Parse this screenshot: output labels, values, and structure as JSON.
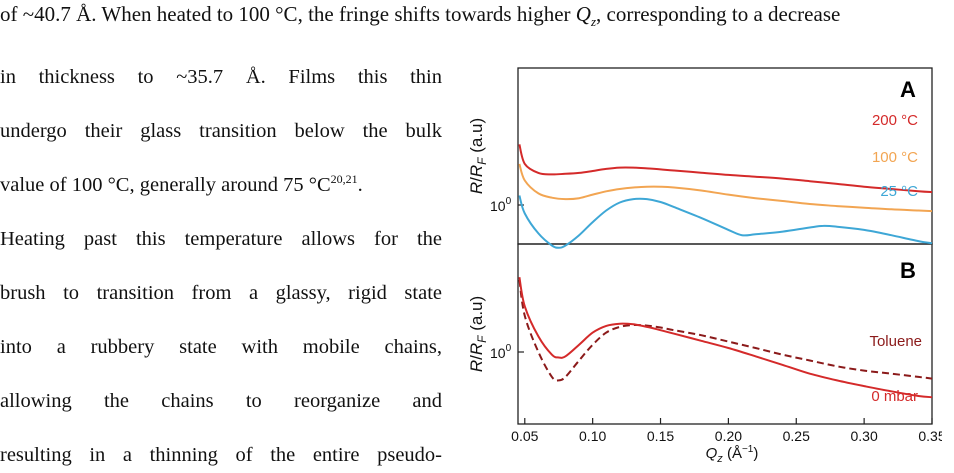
{
  "text": {
    "top_line_pre": "of ~40.7 Å. When heated to 100 °C, the fringe shifts towards higher ",
    "top_line_sym": "Q",
    "top_line_sub": "z",
    "top_line_post": ", corresponding to a decrease",
    "lines": [
      "in thickness to ~35.7 Å. Films this thin",
      "undergo their glass transition below the bulk",
      "value of 100 °C, generally around 75 °C",
      "Heating past this temperature allows for the",
      "brush to transition from a glassy, rigid state",
      "into a rubbery state with mobile chains,",
      "allowing the chains to reorganize and",
      "resulting in a thinning of the entire pseudo-"
    ],
    "citation": "20,21",
    "citation_after": "."
  },
  "figure": {
    "panel_a": {
      "letter": "A",
      "ylabel": "R/R_F (a.u)",
      "ytick": "10",
      "ytick_exp": "0",
      "labels": [
        "200 °C",
        "100 °C",
        "25 °C"
      ]
    },
    "panel_b": {
      "letter": "B",
      "ylabel": "R/R_F (a.u)",
      "ytick": "10",
      "ytick_exp": "0",
      "labels": [
        "Toluene",
        "0 mbar"
      ]
    },
    "xlabel": "Q_z (Å^-1)",
    "xticks": [
      "0.05",
      "0.10",
      "0.15",
      "0.20",
      "0.25",
      "0.30",
      "0.35"
    ],
    "colors": {
      "t200": "#d42a2a",
      "t100": "#f2a552",
      "t25": "#3ea7d6",
      "toluene": "#8b1a1a",
      "mbar0": "#d42a2a",
      "axis": "#222222"
    }
  },
  "chart_data": [
    {
      "type": "line",
      "panel": "A",
      "xlabel": "Qz (Å⁻¹)",
      "ylabel": "R/RF (a.u)",
      "xlim": [
        0.045,
        0.35
      ],
      "yscale": "log",
      "series": [
        {
          "name": "200 °C",
          "x": [
            0.046,
            0.05,
            0.06,
            0.07,
            0.08,
            0.09,
            0.1,
            0.11,
            0.12,
            0.13,
            0.14,
            0.15,
            0.16,
            0.18,
            0.2,
            0.22,
            0.24,
            0.26,
            0.28,
            0.3,
            0.32,
            0.34,
            0.35
          ],
          "y": [
            3.2,
            2.2,
            1.85,
            1.8,
            1.82,
            1.85,
            1.92,
            2.0,
            2.05,
            2.05,
            2.02,
            1.98,
            1.94,
            1.86,
            1.78,
            1.72,
            1.66,
            1.58,
            1.5,
            1.42,
            1.36,
            1.3,
            1.28
          ]
        },
        {
          "name": "100 °C",
          "x": [
            0.046,
            0.05,
            0.06,
            0.07,
            0.08,
            0.09,
            0.1,
            0.11,
            0.12,
            0.13,
            0.14,
            0.15,
            0.16,
            0.18,
            0.2,
            0.22,
            0.24,
            0.26,
            0.28,
            0.3,
            0.32,
            0.34,
            0.35
          ],
          "y": [
            2.2,
            1.6,
            1.25,
            1.15,
            1.12,
            1.14,
            1.22,
            1.3,
            1.36,
            1.4,
            1.42,
            1.42,
            1.4,
            1.32,
            1.22,
            1.14,
            1.08,
            1.02,
            0.98,
            0.95,
            0.92,
            0.9,
            0.89
          ]
        },
        {
          "name": "25 °C",
          "x": [
            0.046,
            0.05,
            0.06,
            0.07,
            0.075,
            0.08,
            0.09,
            0.1,
            0.11,
            0.12,
            0.13,
            0.14,
            0.15,
            0.16,
            0.18,
            0.2,
            0.21,
            0.22,
            0.24,
            0.26,
            0.27,
            0.28,
            0.3,
            0.32,
            0.34,
            0.35
          ],
          "y": [
            1.2,
            0.85,
            0.58,
            0.46,
            0.44,
            0.46,
            0.56,
            0.72,
            0.9,
            1.05,
            1.12,
            1.12,
            1.06,
            0.96,
            0.78,
            0.62,
            0.56,
            0.57,
            0.6,
            0.65,
            0.67,
            0.66,
            0.62,
            0.56,
            0.5,
            0.48
          ]
        }
      ]
    },
    {
      "type": "line",
      "panel": "B",
      "xlabel": "Qz (Å⁻¹)",
      "ylabel": "R/RF (a.u)",
      "xlim": [
        0.045,
        0.35
      ],
      "yscale": "log",
      "xticks": [
        0.05,
        0.1,
        0.15,
        0.2,
        0.25,
        0.3,
        0.35
      ],
      "series": [
        {
          "name": "Toluene",
          "style": "dashed",
          "x": [
            0.046,
            0.05,
            0.06,
            0.07,
            0.075,
            0.08,
            0.09,
            0.1,
            0.11,
            0.12,
            0.13,
            0.14,
            0.15,
            0.16,
            0.18,
            0.2,
            0.22,
            0.24,
            0.26,
            0.28,
            0.3,
            0.32,
            0.34,
            0.35
          ],
          "y": [
            4.0,
            2.0,
            1.0,
            0.62,
            0.58,
            0.62,
            0.85,
            1.15,
            1.45,
            1.62,
            1.68,
            1.66,
            1.6,
            1.52,
            1.38,
            1.22,
            1.08,
            0.95,
            0.85,
            0.76,
            0.7,
            0.66,
            0.62,
            0.6
          ]
        },
        {
          "name": "0 mbar",
          "style": "solid",
          "x": [
            0.046,
            0.05,
            0.06,
            0.07,
            0.075,
            0.08,
            0.09,
            0.1,
            0.11,
            0.12,
            0.13,
            0.14,
            0.15,
            0.16,
            0.18,
            0.2,
            0.22,
            0.24,
            0.26,
            0.28,
            0.3,
            0.32,
            0.34,
            0.35
          ],
          "y": [
            4.2,
            2.4,
            1.35,
            0.95,
            0.9,
            0.92,
            1.15,
            1.45,
            1.65,
            1.72,
            1.7,
            1.62,
            1.52,
            1.42,
            1.24,
            1.08,
            0.92,
            0.78,
            0.66,
            0.58,
            0.52,
            0.47,
            0.43,
            0.42
          ]
        }
      ]
    }
  ]
}
